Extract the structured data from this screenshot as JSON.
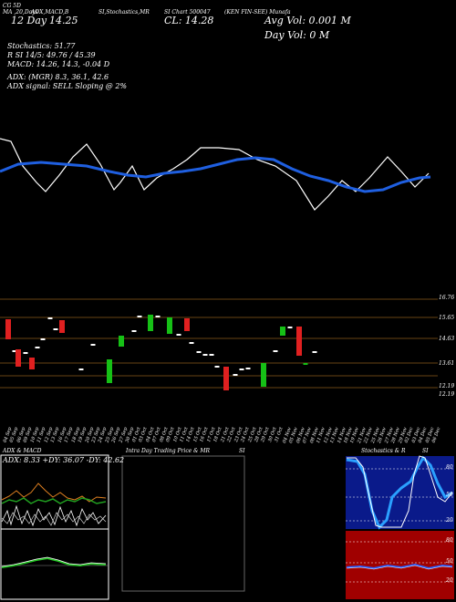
{
  "header": {
    "code_label": "CG 5D",
    "indicator_strip": "MA ,20,Days",
    "top_text_1": "ADX,MACD,B",
    "top_text_2": "SI,Stochastics,MR",
    "top_text_3": "SI Chart 500047",
    "top_text_4": "(KEN  FIN-SEE) Munafa",
    "last_price_label": "12  Day",
    "last_price_value": "14.25",
    "close_label": "CL: 14.28",
    "avg_vol": "Avg Vol: 0.001  M",
    "day_vol": "Day Vol: 0   M"
  },
  "stats": {
    "stochastics": "Stochastics: 51.77",
    "si_line": "R          SI 14/5: 49.76 / 45.39",
    "macd": "MACD: 14.26, 14.3, -0.04  D",
    "adx": "ADX:                     (MGR) 8.3, 36.1, 42.6",
    "adx_signal": "ADX  signal: SELL  Sloping @ 2%"
  },
  "price_axis": {
    "top_label": "16.76",
    "labels": [
      "15.65",
      "14.63",
      "13.61",
      "12.19",
      "12.19"
    ]
  },
  "dates": [
    "04 Sep",
    "05 Sep",
    "06 Sep",
    "09 Sep",
    "10 Sep",
    "11 Sep",
    "12 Sep",
    "13 Sep",
    "16 Sep",
    "17 Sep",
    "18 Sep",
    "19 Sep",
    "20 Sep",
    "23 Sep",
    "24 Sep",
    "25 Sep",
    "26 Sep",
    "27 Sep",
    "30 Sep",
    "01 Oct",
    "03 Oct",
    "04 Oct",
    "07 Oct",
    "08 Oct",
    "09 Oct",
    "10 Oct",
    "11 Oct",
    "14 Oct",
    "15 Oct",
    "16 Oct",
    "17 Oct",
    "18 Oct",
    "21 Oct",
    "22 Oct",
    "23 Oct",
    "24 Oct",
    "25 Oct",
    "28 Oct",
    "29 Oct",
    "30 Oct",
    "31 Oct",
    "04 Nov",
    "05 Nov",
    "06 Nov",
    "07 Nov",
    "08 Nov",
    "11 Nov",
    "12 Nov",
    "13 Nov",
    "14 Nov",
    "18 Nov",
    "19 Nov",
    "21 Nov",
    "22 Nov",
    "25 Nov",
    "26 Nov",
    "27 Nov",
    "28 Nov",
    "29 Nov",
    "02 Dec",
    "03 Dec",
    "04 Dec",
    "05 Dec",
    "06 Dec"
  ],
  "panels": {
    "adx_title": "ADX  & MACD",
    "adx_values": "ADX: 8.33  +DY: 36.07  -DY: 42.62",
    "intra_title": "Intra  Day Trading Price  & MR",
    "intra_title2": "SI",
    "stoch_title": "Stochastics & R",
    "stoch_title2": "SI",
    "stoch_axis": [
      "80",
      "50",
      "20"
    ],
    "si_axis": [
      "80",
      "50",
      "20"
    ]
  },
  "colors": {
    "background": "#000000",
    "ma_line": "#ffffff",
    "blue_line": "#1f5fe0",
    "up_candle": "#16c016",
    "down_candle": "#e02020",
    "flat_candle": "#ffffff",
    "grid": "#8a5a1a",
    "stoch_bg": "#0a1a8a",
    "si_bg": "#a00000"
  },
  "chart_data": {
    "type": "line",
    "price_series": [
      14.3,
      14.3,
      14.1,
      13.9,
      13.7,
      13.6,
      13.8,
      14.0,
      14.2,
      14.4,
      14.3,
      14.0,
      13.8,
      13.9,
      14.1,
      14.0,
      14.3,
      14.6,
      14.8,
      14.9,
      14.9,
      14.9,
      14.7,
      14.5,
      14.3,
      14.1,
      13.9,
      13.7,
      13.6,
      13.8,
      14.0,
      14.2,
      14.0,
      13.7
    ]
  }
}
